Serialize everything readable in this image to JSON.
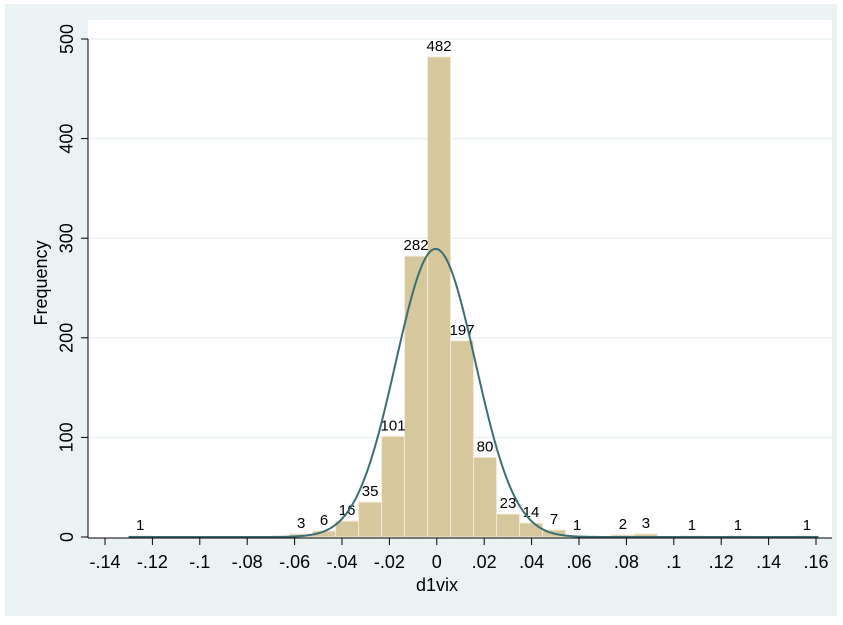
{
  "chart_data": {
    "type": "histogram",
    "xlabel": "d1vix",
    "ylabel": "Frequency",
    "bins": [
      -0.13,
      -0.1203,
      -0.1106,
      -0.1009,
      -0.0912,
      -0.0815,
      -0.0718,
      -0.0621,
      -0.0524,
      -0.0427,
      -0.033,
      -0.0233,
      -0.0136,
      -0.0039,
      0.0058,
      0.0155,
      0.0252,
      0.0349,
      0.0446,
      0.0543,
      0.064,
      0.0737,
      0.0834,
      0.0931,
      0.1028,
      0.1125,
      0.1222,
      0.1319,
      0.1416,
      0.1513,
      0.161
    ],
    "values": [
      1,
      0,
      0,
      0,
      0,
      0,
      0,
      3,
      6,
      16,
      35,
      101,
      282,
      482,
      197,
      80,
      23,
      14,
      7,
      1,
      0,
      2,
      3,
      0,
      1,
      0,
      1,
      0,
      0,
      1
    ],
    "color": "#d6c79c",
    "density": {
      "type": "normal",
      "mean": -0.0005,
      "sd": 0.0168,
      "color": "#3d6f72"
    },
    "xlim": [
      -0.14,
      0.16
    ],
    "xticks": [
      {
        "value": -0.14,
        "label": "-.14"
      },
      {
        "value": -0.12,
        "label": "-.12"
      },
      {
        "value": -0.1,
        "label": "-.1"
      },
      {
        "value": -0.08,
        "label": "-.08"
      },
      {
        "value": -0.06,
        "label": "-.06"
      },
      {
        "value": -0.04,
        "label": "-.04"
      },
      {
        "value": -0.02,
        "label": "-.02"
      },
      0,
      {
        "value": 0.02,
        "label": ".02"
      },
      {
        "value": 0.04,
        "label": ".04"
      },
      {
        "value": 0.06,
        "label": ".06"
      },
      {
        "value": 0.08,
        "label": ".08"
      },
      {
        "value": 0.1,
        "label": ".1"
      },
      {
        "value": 0.12,
        "label": ".12"
      },
      {
        "value": 0.14,
        "label": ".14"
      },
      {
        "value": 0.16,
        "label": ".16"
      }
    ],
    "ylim": [
      0,
      500
    ],
    "yticks": [
      0,
      100,
      200,
      300,
      400,
      500
    ],
    "grid": true
  }
}
